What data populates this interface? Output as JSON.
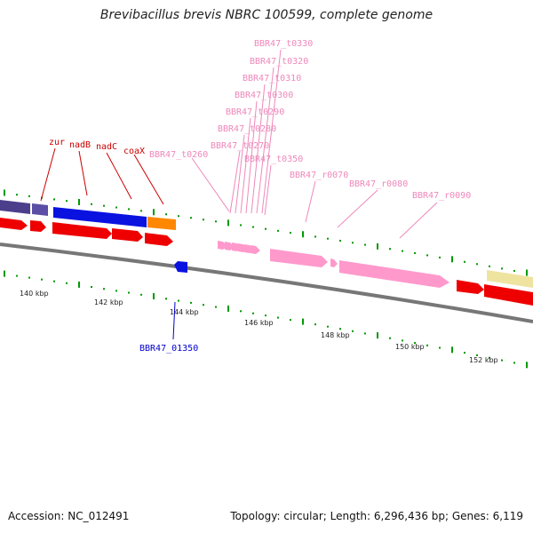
{
  "title": "Brevibacillus brevis NBRC 100599, complete genome",
  "footer": {
    "accession": "Accession: NC_012491",
    "summary": "Topology: circular; Length: 6,296,436 bp; Genes: 6,119"
  },
  "scale_labels": [
    "140 kbp",
    "142 kbp",
    "144 kbp",
    "146 kbp",
    "148 kbp",
    "150 kbp",
    "152 kbp"
  ],
  "gene_labels": {
    "zur": "zur",
    "nadB": "nadB",
    "nadC": "nadC",
    "coaX": "coaX",
    "t0330": "BBR47_t0330",
    "t0320": "BBR47_t0320",
    "t0310": "BBR47_t0310",
    "t0300": "BBR47_t0300",
    "t0290": "BBR47_t0290",
    "t0280": "BBR47_t0280",
    "t0270": "BBR47_t0270",
    "t0260": "BBR47_t0260",
    "t0350": "BBR47_t0350",
    "r0070": "BBR47_r0070",
    "r0080": "BBR47_r0080",
    "r0090": "BBR47_r0090",
    "g01350": "BBR47_01350"
  },
  "colors": {
    "forward_cds": "#ff0000",
    "reverse_cds": "#0000ee",
    "trna": "#ff99cc",
    "rrna": "#ff99cc",
    "other": "#4b3f8c",
    "orange": "#ff8800",
    "yellow": "#eee4a0",
    "backbone": "#808080",
    "ticks": "#009900"
  }
}
